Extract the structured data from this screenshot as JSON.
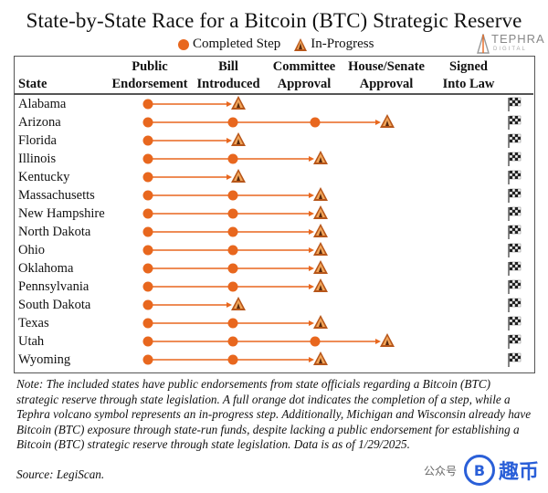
{
  "title": "State-by-State Race for a Bitcoin (BTC) Strategic Reserve",
  "legend": {
    "completed": "Completed Step",
    "in_progress": "In-Progress"
  },
  "brand": {
    "name": "TEPHRA",
    "sub": "DIGITAL"
  },
  "columns": {
    "state": "State",
    "stages": [
      [
        "Public",
        "Endorsement"
      ],
      [
        "Bill",
        "Introduced"
      ],
      [
        "Committee",
        "Approval"
      ],
      [
        "House/Senate",
        "Approval"
      ],
      [
        "Signed",
        "Into Law"
      ]
    ]
  },
  "colors": {
    "completed": "#e8671e",
    "line": "#e8671e",
    "volcano": "#b7561a"
  },
  "chart_data": {
    "type": "table",
    "rows": [
      {
        "state": "Alabama",
        "completed": 1,
        "in_progress": 1
      },
      {
        "state": "Arizona",
        "completed": 3,
        "in_progress": 3
      },
      {
        "state": "Florida",
        "completed": 1,
        "in_progress": 1
      },
      {
        "state": "Illinois",
        "completed": 2,
        "in_progress": 2
      },
      {
        "state": "Kentucky",
        "completed": 1,
        "in_progress": 1
      },
      {
        "state": "Massachusetts",
        "completed": 2,
        "in_progress": 2
      },
      {
        "state": "New Hampshire",
        "completed": 2,
        "in_progress": 2
      },
      {
        "state": "North Dakota",
        "completed": 2,
        "in_progress": 2
      },
      {
        "state": "Ohio",
        "completed": 2,
        "in_progress": 2
      },
      {
        "state": "Oklahoma",
        "completed": 2,
        "in_progress": 2
      },
      {
        "state": "Pennsylvania",
        "completed": 2,
        "in_progress": 2
      },
      {
        "state": "South Dakota",
        "completed": 1,
        "in_progress": 1
      },
      {
        "state": "Texas",
        "completed": 2,
        "in_progress": 2
      },
      {
        "state": "Utah",
        "completed": 3,
        "in_progress": 3
      },
      {
        "state": "Wyoming",
        "completed": 2,
        "in_progress": 2
      }
    ]
  },
  "note": "Note: The included states have public endorsements from state officials regarding a Bitcoin (BTC) strategic reserve through state legislation. A full orange dot indicates the completion of a step, while a Tephra volcano symbol represents an in-progress step. Additionally, Michigan and Wisconsin already have Bitcoin (BTC) exposure through state-run funds, despite lacking a public endorsement for establishing a Bitcoin (BTC) strategic reserve through state legislation. Data is as of 1/29/2025.",
  "source": "Source: LegiScan.",
  "watermark": {
    "wechat": "公众号",
    "text": "趣币",
    "logo": "B"
  }
}
